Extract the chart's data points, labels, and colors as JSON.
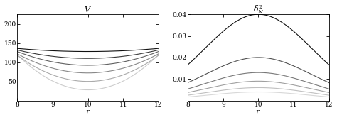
{
  "left_title": "V",
  "right_title": "$\\delta_N^2$",
  "xlabel": "r",
  "x_min": 8,
  "x_max": 12,
  "left_ylim": [
    0,
    225
  ],
  "right_ylim": [
    0,
    0.04
  ],
  "left_yticks": [
    50,
    100,
    150,
    200
  ],
  "right_yticks": [
    0.01,
    0.02,
    0.03,
    0.04
  ],
  "left_curves": [
    {
      "a": 23.0,
      "b": 28.0,
      "color": "#cccccc"
    },
    {
      "a": 17.0,
      "b": 50.0,
      "color": "#aaaaaa"
    },
    {
      "a": 12.5,
      "b": 72.0,
      "color": "#888888"
    },
    {
      "a": 9.0,
      "b": 92.0,
      "color": "#606060"
    },
    {
      "a": 5.5,
      "b": 110.0,
      "color": "#383838"
    },
    {
      "a": 2.0,
      "b": 128.0,
      "color": "#101010"
    }
  ],
  "right_curves": [
    {
      "peak": 0.04,
      "k": 0.22,
      "color": "#101010"
    },
    {
      "peak": 0.02,
      "k": 0.22,
      "color": "#505050"
    },
    {
      "peak": 0.013,
      "k": 0.22,
      "color": "#787878"
    },
    {
      "peak": 0.009,
      "k": 0.22,
      "color": "#a0a0a0"
    },
    {
      "peak": 0.006,
      "k": 0.22,
      "color": "#c0c0c0"
    },
    {
      "peak": 0.004,
      "k": 0.22,
      "color": "#d8d8d8"
    }
  ],
  "background_color": "#ffffff",
  "tick_fontsize": 6.5,
  "label_fontsize": 8,
  "title_fontsize": 8,
  "linewidth": 0.8
}
